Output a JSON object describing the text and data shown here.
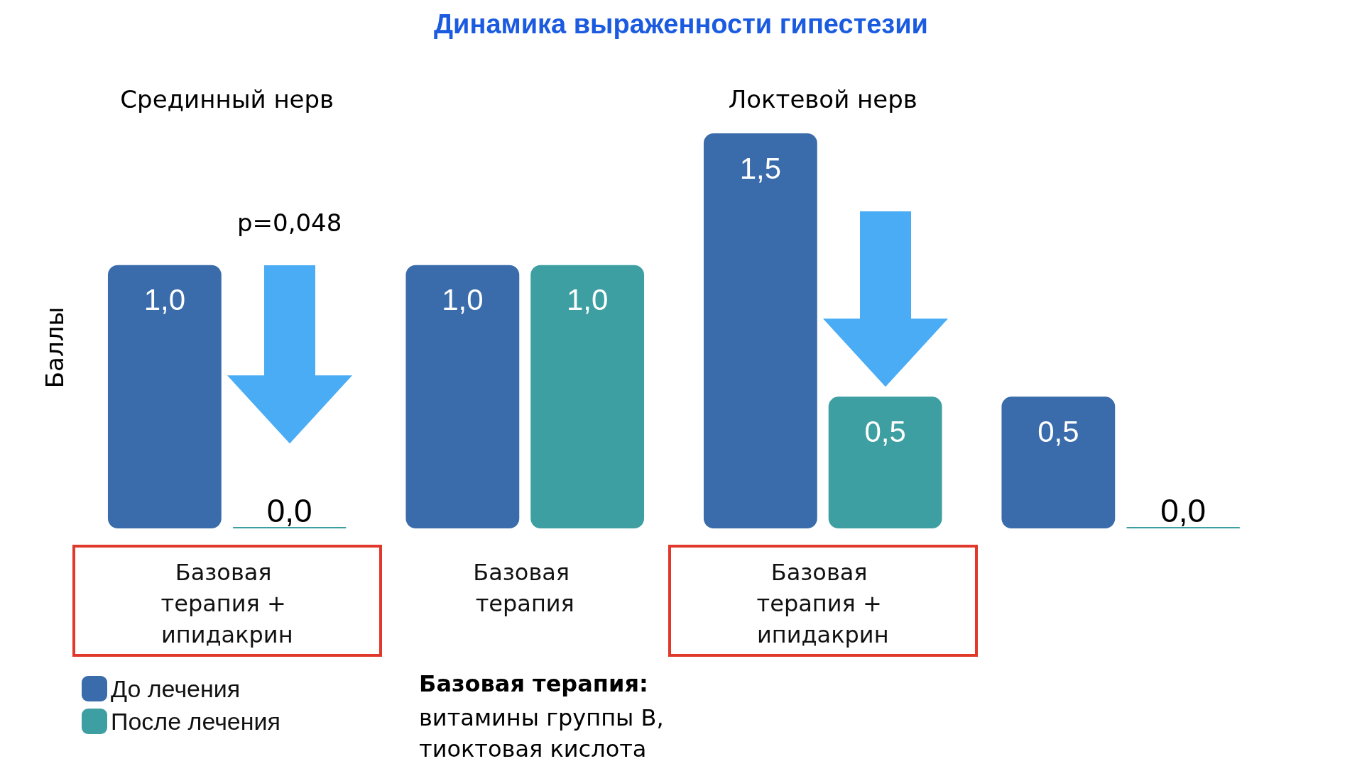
{
  "chart_data": {
    "type": "bar",
    "title": "Динамика выраженности гипестезии",
    "ylabel": "Баллы",
    "categories": [
      "Базовая терапия + ипидакрин",
      "Базовая терапия",
      "Базовая терапия + ипидакрин",
      null
    ],
    "series": [
      {
        "name": "До лечения",
        "color": "#3a6cab",
        "values": [
          1.0,
          1.0,
          1.5,
          0.5
        ],
        "value_labels": [
          "1,0",
          "1,0",
          "1,5",
          "0,5"
        ]
      },
      {
        "name": "После лечения",
        "color": "#3e9fa3",
        "values": [
          0.0,
          1.0,
          0.5,
          0.0
        ],
        "value_labels": [
          "0,0",
          "1,0",
          "0,5",
          "0,0"
        ]
      }
    ],
    "annotations": [
      "Срединный нерв",
      "Локтевой нерв",
      "p=0,048",
      "Базовая терапия:",
      "витамины группы B, тиоктовая кислота"
    ],
    "legend": "bottom left",
    "tick_labels": "x"
  }
}
